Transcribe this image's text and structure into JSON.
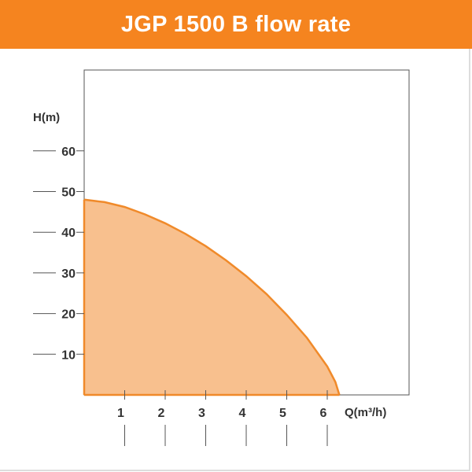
{
  "header": {
    "title": "JGP 1500 B flow rate"
  },
  "colors": {
    "accent": "#f5841f",
    "fill": "#f8c08e",
    "stroke": "#f08a2a",
    "axis": "#555555"
  },
  "chart_data": {
    "type": "area",
    "title": "JGP 1500 B flow rate",
    "xlabel": "Q(m³/h)",
    "ylabel": "H(m)",
    "xlim": [
      0,
      8
    ],
    "ylim": [
      0,
      80
    ],
    "x_ticks": [
      1,
      2,
      3,
      4,
      5,
      6
    ],
    "y_ticks": [
      10,
      20,
      30,
      40,
      50,
      60
    ],
    "grid": false,
    "series": [
      {
        "x": [
          0,
          0.5,
          1,
          1.5,
          2,
          2.5,
          3,
          3.5,
          4,
          4.5,
          5,
          5.5,
          6,
          6.2,
          6.3
        ],
        "y": [
          48,
          47.4,
          46.2,
          44.4,
          42.2,
          39.6,
          36.6,
          33.1,
          29.2,
          24.8,
          19.7,
          14,
          7,
          3.2,
          0
        ]
      }
    ]
  }
}
